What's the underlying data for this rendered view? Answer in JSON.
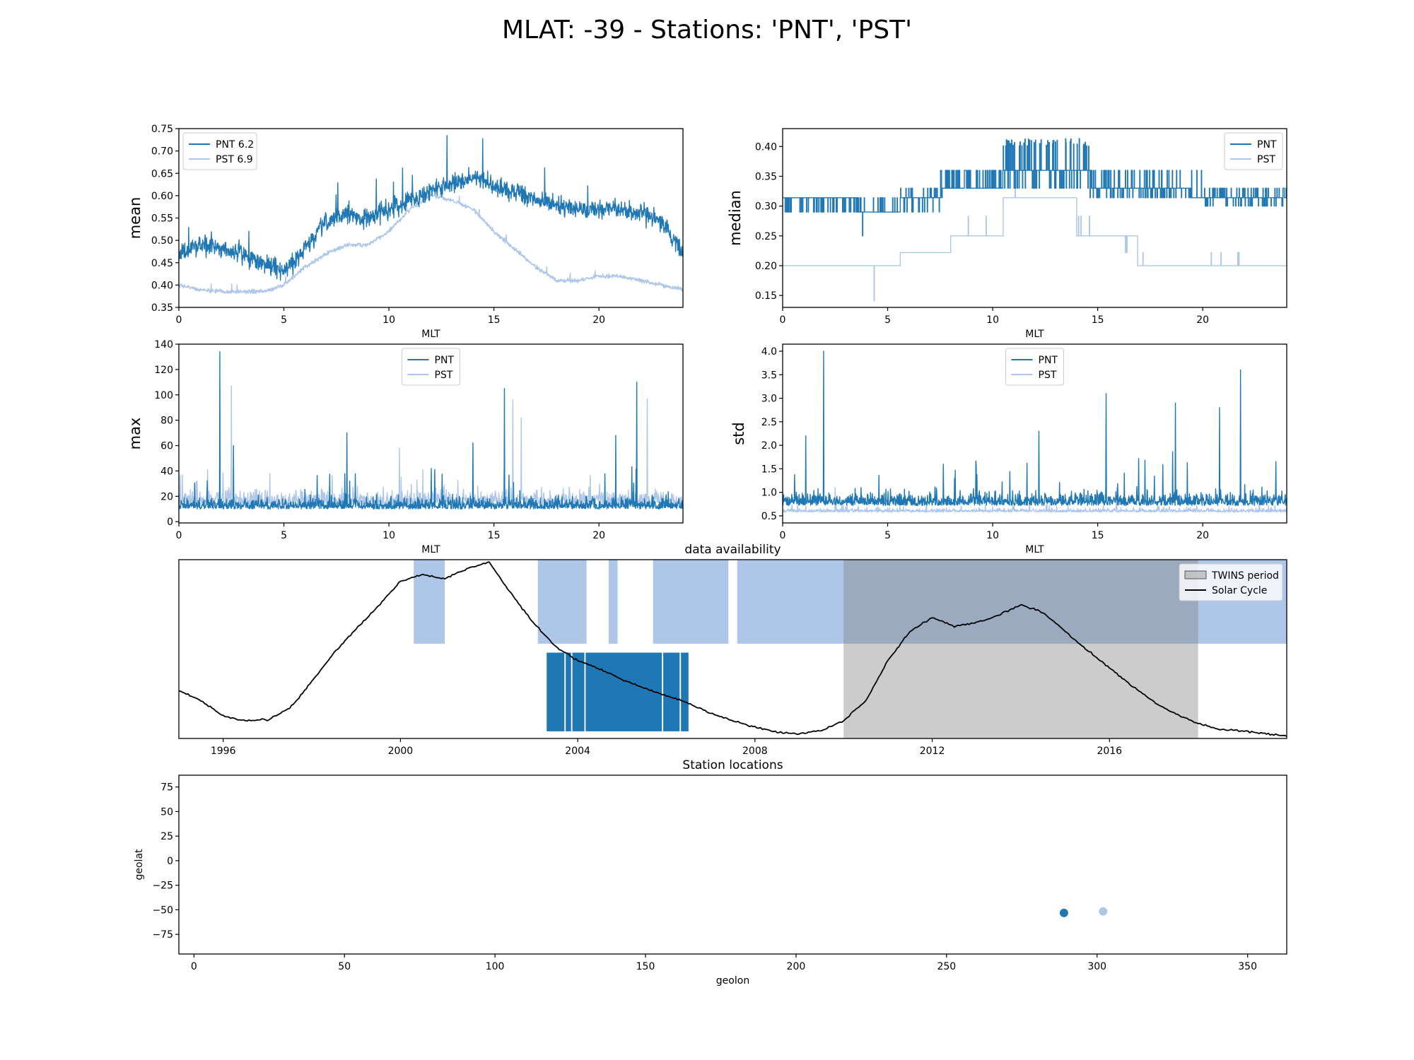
{
  "suptitle": "MLAT: -39 - Stations: 'PNT', 'PST'",
  "colors": {
    "PNT": "#1f77b4",
    "PST": "#aec7e8",
    "solar": "#000000",
    "twins": "#7f7f7f"
  },
  "chart_data": [
    {
      "id": "mean",
      "type": "line",
      "title": "",
      "xlabel": "MLT",
      "ylabel": "mean",
      "xlim": [
        0,
        24
      ],
      "ylim": [
        0.35,
        0.75
      ],
      "xticks": [
        0,
        5,
        10,
        15,
        20
      ],
      "yticks": [
        0.35,
        0.4,
        0.45,
        0.5,
        0.55,
        0.6,
        0.65,
        0.7,
        0.75
      ],
      "ytick_labels": [
        "0.35",
        "0.40",
        "0.45",
        "0.50",
        "0.55",
        "0.60",
        "0.65",
        "0.70",
        "0.75"
      ],
      "legend": "upper left",
      "legend_labels": [
        "PNT 6.2",
        "PST 6.9"
      ],
      "series": [
        {
          "name": "PNT 6.2",
          "x": [
            0,
            1,
            2,
            3,
            4,
            5,
            6,
            7,
            8,
            9,
            10,
            11,
            12,
            13,
            14,
            15,
            16,
            17,
            18,
            19,
            20,
            21,
            22,
            23,
            24
          ],
          "values": [
            0.47,
            0.49,
            0.48,
            0.47,
            0.45,
            0.43,
            0.48,
            0.54,
            0.56,
            0.55,
            0.57,
            0.59,
            0.61,
            0.63,
            0.64,
            0.62,
            0.61,
            0.59,
            0.58,
            0.57,
            0.57,
            0.57,
            0.56,
            0.54,
            0.47
          ]
        },
        {
          "name": "PST 6.9",
          "x": [
            0,
            1,
            2,
            3,
            4,
            5,
            6,
            7,
            8,
            9,
            10,
            11,
            12,
            13,
            14,
            15,
            16,
            17,
            18,
            19,
            20,
            21,
            22,
            23,
            24
          ],
          "values": [
            0.4,
            0.39,
            0.385,
            0.385,
            0.385,
            0.4,
            0.44,
            0.47,
            0.49,
            0.49,
            0.52,
            0.57,
            0.6,
            0.59,
            0.57,
            0.52,
            0.48,
            0.44,
            0.41,
            0.41,
            0.42,
            0.42,
            0.41,
            0.4,
            0.39
          ]
        }
      ]
    },
    {
      "id": "median",
      "type": "line",
      "title": "",
      "xlabel": "MLT",
      "ylabel": "median",
      "xlim": [
        0,
        24
      ],
      "ylim": [
        0.13,
        0.43
      ],
      "xticks": [
        0,
        5,
        10,
        15,
        20
      ],
      "yticks": [
        0.15,
        0.2,
        0.25,
        0.3,
        0.35,
        0.4
      ],
      "ytick_labels": [
        "0.15",
        "0.20",
        "0.25",
        "0.30",
        "0.35",
        "0.40"
      ],
      "legend": "upper right",
      "legend_labels": [
        "PNT",
        "PST"
      ],
      "series": [
        {
          "name": "PNT",
          "x": [
            0,
            3.5,
            3.6,
            5.5,
            5.6,
            7.5,
            7.6,
            10.4,
            10.5,
            14.6,
            14.7,
            19.4,
            19.5,
            24
          ],
          "values": [
            0.314,
            0.314,
            0.29,
            0.29,
            0.314,
            0.314,
            0.33,
            0.33,
            0.36,
            0.36,
            0.33,
            0.33,
            0.314,
            0.314
          ]
        },
        {
          "name": "PST",
          "x": [
            0,
            5.5,
            5.6,
            7.9,
            8.0,
            10.4,
            10.5,
            13.9,
            14.0,
            16.8,
            16.9,
            24
          ],
          "values": [
            0.2,
            0.2,
            0.222,
            0.222,
            0.25,
            0.25,
            0.314,
            0.314,
            0.25,
            0.25,
            0.2,
            0.2
          ]
        }
      ]
    },
    {
      "id": "max",
      "type": "line",
      "title": "",
      "xlabel": "MLT",
      "ylabel": "max",
      "xlim": [
        0,
        24
      ],
      "ylim": [
        -1,
        140
      ],
      "xticks": [
        0,
        5,
        10,
        15,
        20
      ],
      "yticks": [
        0,
        20,
        40,
        60,
        80,
        100,
        120,
        140
      ],
      "ytick_labels": [
        "0",
        "20",
        "40",
        "60",
        "80",
        "100",
        "120",
        "140"
      ],
      "legend": "upper center",
      "legend_labels": [
        "PNT",
        "PST"
      ],
      "series": [
        {
          "name": "PNT",
          "peaks": [
            [
              1.95,
              134
            ],
            [
              8.0,
              70
            ],
            [
              15.5,
              105
            ],
            [
              21.8,
              110
            ],
            [
              20.8,
              68
            ],
            [
              14.0,
              62
            ],
            [
              2.6,
              60
            ]
          ]
        },
        {
          "name": "PST",
          "peaks": [
            [
              2.5,
              107
            ],
            [
              15.9,
              96
            ],
            [
              22.3,
              97
            ],
            [
              16.3,
              82
            ],
            [
              10.5,
              58
            ]
          ]
        }
      ]
    },
    {
      "id": "std",
      "type": "line",
      "title": "",
      "xlabel": "MLT",
      "ylabel": "std",
      "xlim": [
        0,
        24
      ],
      "ylim": [
        0.35,
        4.15
      ],
      "xticks": [
        0,
        5,
        10,
        15,
        20
      ],
      "yticks": [
        0.5,
        1.0,
        1.5,
        2.0,
        2.5,
        3.0,
        3.5,
        4.0
      ],
      "ytick_labels": [
        "0.5",
        "1.0",
        "1.5",
        "2.0",
        "2.5",
        "3.0",
        "3.5",
        "4.0"
      ],
      "legend": "upper center",
      "legend_labels": [
        "PNT",
        "PST"
      ],
      "series": [
        {
          "name": "PNT",
          "peaks": [
            [
              1.95,
              4.0
            ],
            [
              21.8,
              3.6
            ],
            [
              15.4,
              3.1
            ],
            [
              18.7,
              2.9
            ],
            [
              20.8,
              2.8
            ],
            [
              1.1,
              2.2
            ],
            [
              12.2,
              2.3
            ]
          ]
        },
        {
          "name": "PST",
          "peaks": [
            [
              2.5,
              1.1
            ],
            [
              15.9,
              1.1
            ]
          ]
        }
      ]
    },
    {
      "id": "availability",
      "type": "bar",
      "title": "data availability",
      "xlim": [
        1995.0,
        2020.0
      ],
      "xticks": [
        1996,
        2000,
        2004,
        2008,
        2012,
        2016
      ],
      "legend": "upper right",
      "legend_labels": [
        "TWINS period",
        "Solar Cycle"
      ],
      "twins_period": [
        2010.0,
        2018.0
      ],
      "PST_intervals": [
        [
          2000.3,
          2001.0
        ],
        [
          2003.1,
          2004.2
        ],
        [
          2004.7,
          2004.9
        ],
        [
          2005.7,
          2007.4
        ],
        [
          2007.6,
          2020.0
        ]
      ],
      "PNT_intervals": [
        [
          2003.3,
          2006.5
        ]
      ],
      "solar_cycle": {
        "x": [
          1995.0,
          1995.5,
          1996.0,
          1996.5,
          1997.0,
          1997.5,
          1998.0,
          1998.5,
          1999.0,
          1999.5,
          2000.0,
          2000.5,
          2001.0,
          2001.5,
          2002.0,
          2002.5,
          2003.0,
          2003.5,
          2004.0,
          2004.5,
          2005.0,
          2005.5,
          2006.0,
          2006.5,
          2007.0,
          2007.5,
          2008.0,
          2008.5,
          2009.0,
          2009.5,
          2010.0,
          2010.5,
          2011.0,
          2011.5,
          2012.0,
          2012.5,
          2013.0,
          2013.5,
          2014.0,
          2014.5,
          2015.0,
          2015.5,
          2016.0,
          2016.5,
          2017.0,
          2017.5,
          2018.0,
          2018.5,
          2019.0,
          2019.5,
          2020.0
        ],
        "values": [
          0.38,
          0.3,
          0.18,
          0.14,
          0.15,
          0.24,
          0.45,
          0.68,
          0.87,
          1.05,
          1.25,
          1.3,
          1.27,
          1.35,
          1.4,
          1.15,
          0.92,
          0.73,
          0.62,
          0.55,
          0.47,
          0.4,
          0.34,
          0.28,
          0.2,
          0.14,
          0.09,
          0.05,
          0.04,
          0.06,
          0.14,
          0.3,
          0.62,
          0.85,
          0.96,
          0.89,
          0.92,
          0.98,
          1.06,
          1.0,
          0.85,
          0.7,
          0.56,
          0.42,
          0.29,
          0.19,
          0.12,
          0.07,
          0.06,
          0.04,
          0.02
        ]
      }
    },
    {
      "id": "locations",
      "type": "scatter",
      "title": "Station locations",
      "xlabel": "geolon",
      "ylabel": "geolat",
      "xlim": [
        -5,
        363
      ],
      "ylim": [
        -95,
        87
      ],
      "xticks": [
        0,
        50,
        100,
        150,
        200,
        250,
        300,
        350
      ],
      "yticks": [
        -75,
        -50,
        -25,
        0,
        25,
        50,
        75
      ],
      "ytick_labels": [
        "−75",
        "−50",
        "−25",
        "0",
        "25",
        "50",
        "75"
      ],
      "points": [
        {
          "name": "PNT",
          "x": 289.0,
          "y": -53.2
        },
        {
          "name": "PST",
          "x": 302.0,
          "y": -51.7
        }
      ]
    }
  ]
}
